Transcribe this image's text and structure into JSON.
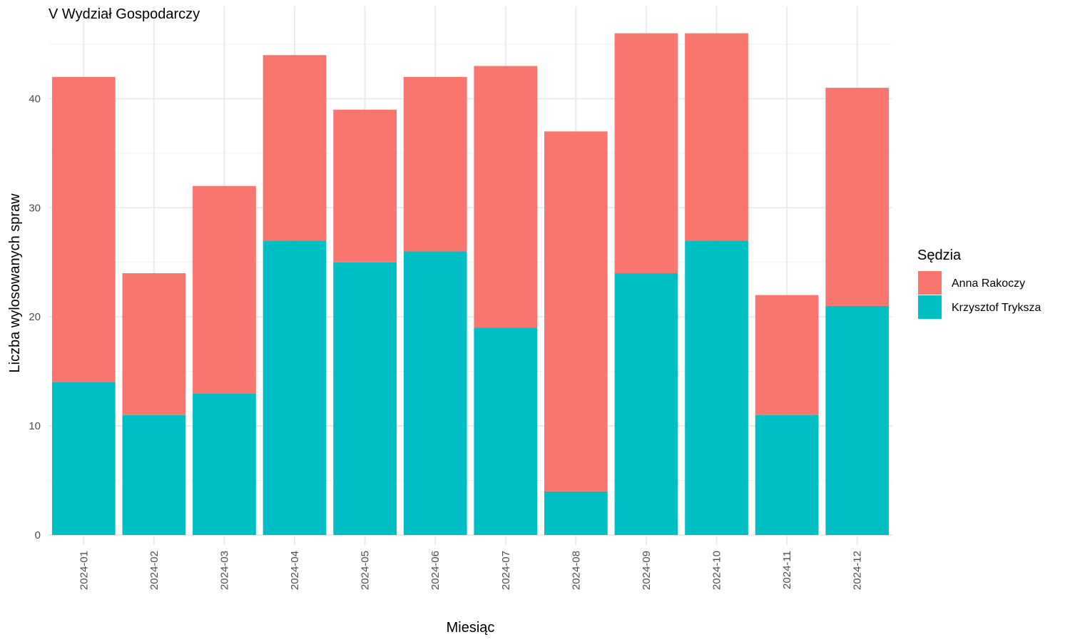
{
  "chart_data": {
    "type": "bar",
    "stacked": true,
    "title": "V Wydział Gospodarczy",
    "xlabel": "Miesiąc",
    "ylabel": "Liczba wylosowanych spraw",
    "ylim": [
      0,
      48
    ],
    "yticks": [
      0,
      10,
      20,
      30,
      40
    ],
    "categories": [
      "2024-01",
      "2024-02",
      "2024-03",
      "2024-04",
      "2024-05",
      "2024-06",
      "2024-07",
      "2024-08",
      "2024-09",
      "2024-10",
      "2024-11",
      "2024-12"
    ],
    "series": [
      {
        "name": "Krzysztof Tryksza",
        "color": "#00BFC4",
        "values": [
          14,
          11,
          13,
          27,
          25,
          26,
          19,
          4,
          24,
          27,
          11,
          21
        ]
      },
      {
        "name": "Anna Rakoczy",
        "color": "#F8766D",
        "values": [
          28,
          13,
          19,
          17,
          14,
          16,
          24,
          33,
          22,
          19,
          11,
          20
        ]
      }
    ],
    "legend": {
      "title": "Sędzia",
      "placement": "right",
      "order": [
        "Anna Rakoczy",
        "Krzysztof Tryksza"
      ]
    },
    "grid": true
  }
}
